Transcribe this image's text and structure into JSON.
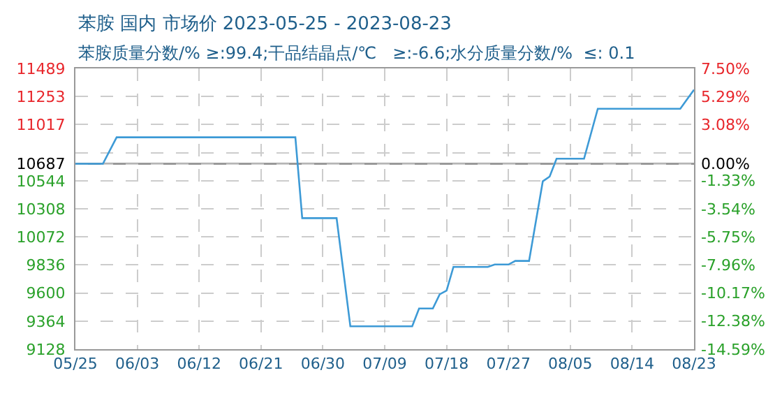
{
  "chart_data": {
    "type": "line",
    "title": "苯胺 国内 市场价 2023-05-25 - 2023-08-23",
    "subtitle": "苯胺质量分数/% ≥:99.4;干品结晶点/℃   ≥:-6.6;水分质量分数/%  ≤: 0.1",
    "x": [
      "2023-05-25",
      "2023-05-29",
      "2023-05-31",
      "2023-06-26",
      "2023-06-27",
      "2023-07-02",
      "2023-07-04",
      "2023-07-13",
      "2023-07-14",
      "2023-07-16",
      "2023-07-17",
      "2023-07-18",
      "2023-07-19",
      "2023-07-24",
      "2023-07-25",
      "2023-07-27",
      "2023-07-28",
      "2023-07-30",
      "2023-08-01",
      "2023-08-02",
      "2023-08-03",
      "2023-08-07",
      "2023-08-09",
      "2023-08-21",
      "2023-08-22",
      "2023-08-23"
    ],
    "series": [
      {
        "color": "#3d9ad6",
        "values": [
          10687,
          10687,
          10910,
          10910,
          10230,
          10230,
          9320,
          9320,
          9470,
          9470,
          9590,
          9620,
          9820,
          9820,
          9840,
          9840,
          9870,
          9870,
          10540,
          10580,
          10730,
          10730,
          11150,
          11150,
          11230,
          11310
        ]
      }
    ],
    "xlim": [
      "2023-05-25",
      "2023-08-23"
    ],
    "xticks": [
      {
        "value": "2023-05-25",
        "label": "05/25"
      },
      {
        "value": "2023-06-03",
        "label": "06/03"
      },
      {
        "value": "2023-06-12",
        "label": "06/12"
      },
      {
        "value": "2023-06-21",
        "label": "06/21"
      },
      {
        "value": "2023-06-30",
        "label": "06/30"
      },
      {
        "value": "2023-07-09",
        "label": "07/09"
      },
      {
        "value": "2023-07-18",
        "label": "07/18"
      },
      {
        "value": "2023-07-27",
        "label": "07/27"
      },
      {
        "value": "2023-08-05",
        "label": "08/05"
      },
      {
        "value": "2023-08-14",
        "label": "08/14"
      },
      {
        "value": "2023-08-23",
        "label": "08/23"
      }
    ],
    "ylim": [
      9128,
      11489
    ],
    "yticks": [
      11489,
      11253,
      11017,
      {
        "value": 10781,
        "label": null
      },
      10687,
      10544,
      10308,
      10072,
      9836,
      9600,
      9364,
      9128
    ],
    "y2lim": [
      -14.59,
      7.5
    ],
    "y2ticks": [
      {
        "value": 7.5,
        "label": "7.50%"
      },
      {
        "value": 5.29,
        "label": "5.29%"
      },
      {
        "value": 3.08,
        "label": "3.08%"
      },
      {
        "value": 0,
        "label": "0.00%"
      },
      {
        "value": -1.33,
        "label": "-1.33%"
      },
      {
        "value": -3.54,
        "label": "-3.54%"
      },
      {
        "value": -5.75,
        "label": "-5.75%"
      },
      {
        "value": -7.96,
        "label": "-7.96%"
      },
      {
        "value": -10.17,
        "label": "-10.17%"
      },
      {
        "value": -12.38,
        "label": "-12.38%"
      },
      {
        "value": -14.59,
        "label": "-14.59%"
      }
    ],
    "ref_lines": [
      {
        "axis": "y",
        "value": 10687,
        "color": "#999999",
        "line_style": "solid"
      }
    ],
    "grid": true,
    "marker": "none",
    "line_style": "solid"
  }
}
